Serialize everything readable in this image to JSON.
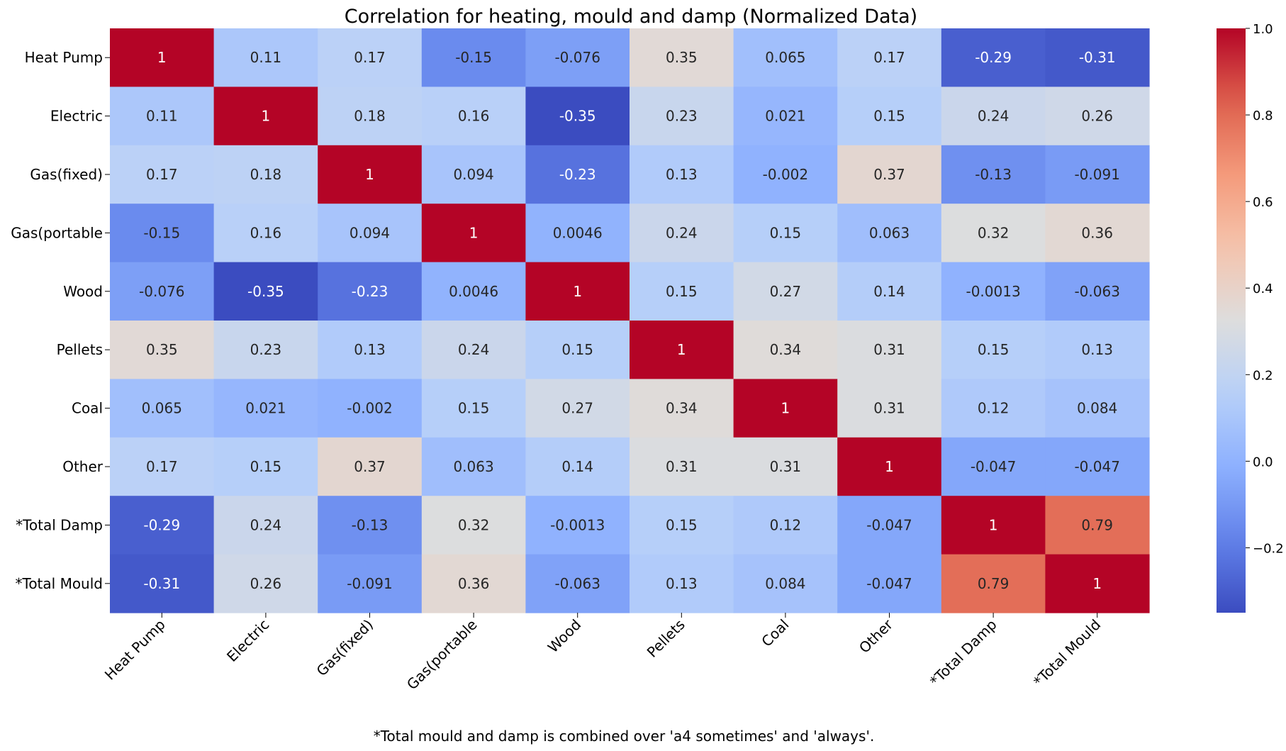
{
  "chart_data": {
    "type": "heatmap",
    "title": "Correlation for heating, mould and damp (Normalized Data)",
    "row_labels": [
      "Heat Pump",
      "Electric",
      "Gas(fixed)",
      "Gas(portable",
      "Wood",
      "Pellets",
      "Coal",
      "Other",
      "*Total Damp",
      "*Total Mould"
    ],
    "col_labels": [
      "Heat Pump",
      "Electric",
      "Gas(fixed)",
      "Gas(portable",
      "Wood",
      "Pellets",
      "Coal",
      "Other",
      "*Total Damp",
      "*Total Mould"
    ],
    "values": [
      [
        1,
        0.11,
        0.17,
        -0.15,
        -0.076,
        0.35,
        0.065,
        0.17,
        -0.29,
        -0.31
      ],
      [
        0.11,
        1,
        0.18,
        0.16,
        -0.35,
        0.23,
        0.021,
        0.15,
        0.24,
        0.26
      ],
      [
        0.17,
        0.18,
        1,
        0.094,
        -0.23,
        0.13,
        -0.002,
        0.37,
        -0.13,
        -0.091
      ],
      [
        -0.15,
        0.16,
        0.094,
        1,
        0.0046,
        0.24,
        0.15,
        0.063,
        0.32,
        0.36
      ],
      [
        -0.076,
        -0.35,
        -0.23,
        0.0046,
        1,
        0.15,
        0.27,
        0.14,
        -0.0013,
        -0.063
      ],
      [
        0.35,
        0.23,
        0.13,
        0.24,
        0.15,
        1,
        0.34,
        0.31,
        0.15,
        0.13
      ],
      [
        0.065,
        0.021,
        -0.002,
        0.15,
        0.27,
        0.34,
        1,
        0.31,
        0.12,
        0.084
      ],
      [
        0.17,
        0.15,
        0.37,
        0.063,
        0.14,
        0.31,
        0.31,
        1,
        -0.047,
        -0.047
      ],
      [
        -0.29,
        0.24,
        -0.13,
        0.32,
        -0.0013,
        0.15,
        0.12,
        -0.047,
        1,
        0.79
      ],
      [
        -0.31,
        0.26,
        -0.091,
        0.36,
        -0.063,
        0.13,
        0.084,
        -0.047,
        0.79,
        1
      ]
    ],
    "colormap": "coolwarm",
    "colorbar": {
      "range": [
        -0.35,
        1.0
      ],
      "ticks": [
        -0.2,
        0.0,
        0.2,
        0.4,
        0.6,
        0.8,
        1.0
      ],
      "tick_labels": [
        "−0.2",
        "0.0",
        "0.2",
        "0.4",
        "0.6",
        "0.8",
        "1.0"
      ]
    },
    "footnote": "*Total mould and damp is combined over 'a4 sometimes' and 'always'."
  }
}
